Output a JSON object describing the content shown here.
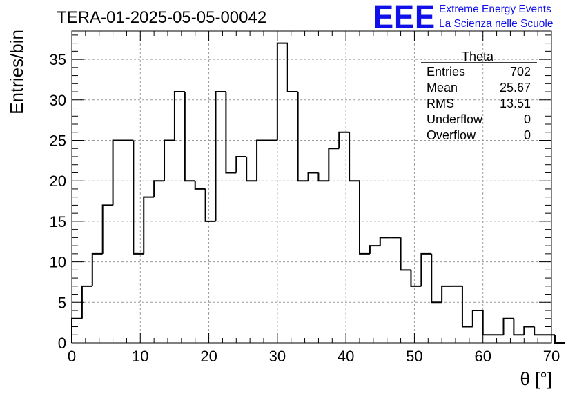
{
  "header": {
    "title": "TERA-01-2025-05-05-00042"
  },
  "logo": {
    "mark": "EEE",
    "line1": "Extreme Energy Events",
    "line2": "La Scienza nelle Scuole",
    "color": "#1010e8"
  },
  "stats": {
    "title": "Theta",
    "rows": [
      {
        "label": "Entries",
        "value": "702"
      },
      {
        "label": "Mean",
        "value": "25.67"
      },
      {
        "label": "RMS",
        "value": "13.51"
      },
      {
        "label": "Underflow",
        "value": "0"
      },
      {
        "label": "Overflow",
        "value": "0"
      }
    ]
  },
  "chart_data": {
    "type": "bar",
    "style": "step-histogram",
    "title": "TERA-01-2025-05-05-00042",
    "xlabel": "θ [°]",
    "ylabel": "Entries/bin",
    "xlim": [
      0,
      70
    ],
    "ylim": [
      0,
      38.5
    ],
    "x_ticks": [
      0,
      10,
      20,
      30,
      40,
      50,
      60,
      70
    ],
    "y_ticks": [
      0,
      5,
      10,
      15,
      20,
      25,
      30,
      35
    ],
    "grid": true,
    "bin_width": 1.5,
    "bin_start": 0,
    "values": [
      3,
      7,
      11,
      17,
      25,
      25,
      11,
      18,
      20,
      25,
      31,
      20,
      19,
      15,
      31,
      21,
      23,
      20,
      25,
      25,
      37,
      31,
      20,
      21,
      20,
      24,
      26,
      20,
      11,
      12,
      13,
      13,
      9,
      7,
      11,
      5,
      7,
      7,
      2,
      4,
      1,
      1,
      3,
      1,
      2,
      1,
      1,
      0
    ],
    "color": "#000000",
    "grid_color": "#9a9a9a"
  }
}
